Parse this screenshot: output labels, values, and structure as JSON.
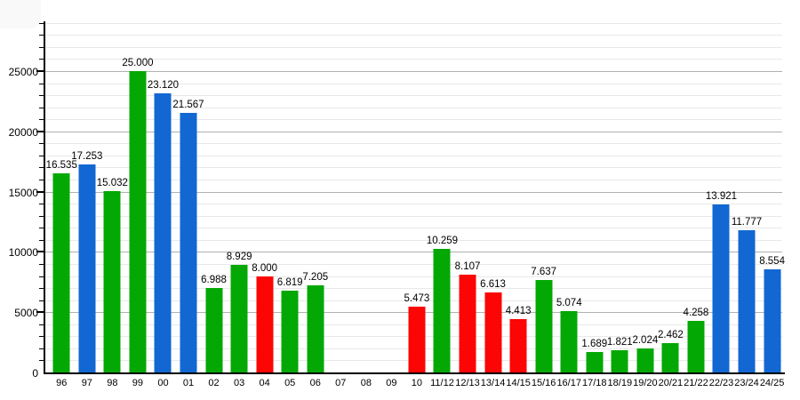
{
  "chart_data": {
    "type": "bar",
    "title": "",
    "xlabel": "",
    "ylabel": "",
    "legend": "none",
    "grid": true,
    "background_color": "#ffffff",
    "axis_color": "#000000",
    "grid_minor_color": "#e9e9e9",
    "grid_major_color": "#b1b1b1",
    "label_color": "#000000",
    "ylim": [
      0,
      29000
    ],
    "y_ticks": [
      0,
      5000,
      10000,
      15000,
      20000,
      25000
    ],
    "y_tick_labels": [
      "0",
      "5000",
      "10000",
      "15000",
      "20000",
      "25000"
    ],
    "minor_grid_step": 1000,
    "palette": {
      "green": "#04a804",
      "blue": "#1267d2",
      "red": "#fb0505"
    },
    "categories": [
      "96",
      "97",
      "98",
      "99",
      "00",
      "01",
      "02",
      "03",
      "04",
      "05",
      "06",
      "07",
      "08",
      "09",
      "10",
      "11/12",
      "12/13",
      "13/14",
      "14/15",
      "15/16",
      "16/17",
      "17/18",
      "18/19",
      "19/20",
      "20/21",
      "21/22",
      "22/23",
      "23/24",
      "24/25"
    ],
    "values": [
      16535,
      17253,
      15032,
      25000,
      23120,
      21567,
      6988,
      8929,
      8000,
      6819,
      7205,
      null,
      null,
      null,
      5473,
      10259,
      8107,
      6613,
      4413,
      7637,
      5074,
      1689,
      1821,
      2024,
      2462,
      4258,
      13921,
      11777,
      8554
    ],
    "value_labels": [
      "16.535",
      "17.253",
      "15.032",
      "25.000",
      "23.120",
      "21.567",
      "6.988",
      "8.929",
      "8.000",
      "6.819",
      "7.205",
      null,
      null,
      null,
      "5.473",
      "10.259",
      "8.107",
      "6.613",
      "4.413",
      "7.637",
      "5.074",
      "1.689",
      "1.821",
      "2.024",
      "2.462",
      "4.258",
      "13.921",
      "11.777",
      "8.554"
    ],
    "bar_colors": [
      "green",
      "blue",
      "green",
      "green",
      "blue",
      "blue",
      "green",
      "green",
      "red",
      "green",
      "green",
      null,
      null,
      null,
      "red",
      "green",
      "red",
      "red",
      "red",
      "green",
      "green",
      "green",
      "green",
      "green",
      "green",
      "green",
      "blue",
      "blue",
      "blue"
    ]
  }
}
